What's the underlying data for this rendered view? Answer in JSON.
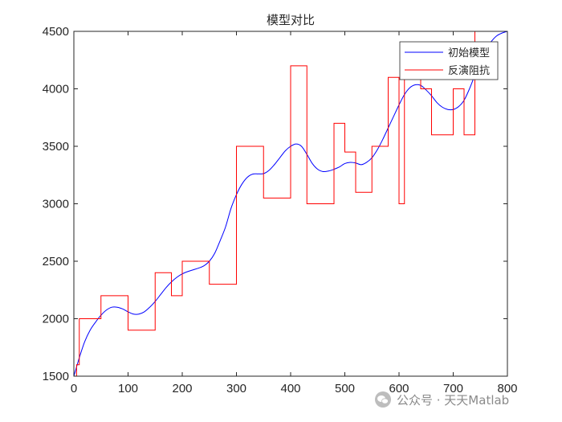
{
  "chart_data": {
    "type": "line",
    "title": "模型对比",
    "xlabel": "",
    "ylabel": "",
    "xlim": [
      0,
      800
    ],
    "ylim": [
      1500,
      4500
    ],
    "xticks": [
      0,
      100,
      200,
      300,
      400,
      500,
      600,
      700,
      800
    ],
    "yticks": [
      1500,
      2000,
      2500,
      3000,
      3500,
      4000,
      4500
    ],
    "grid": false,
    "legend_position": "top-right",
    "series": [
      {
        "name": "初始模型",
        "color": "#0000ff",
        "style": "smooth",
        "x": [
          0,
          10,
          20,
          30,
          40,
          50,
          60,
          70,
          80,
          90,
          100,
          110,
          120,
          130,
          140,
          150,
          160,
          170,
          180,
          190,
          200,
          210,
          220,
          230,
          240,
          250,
          260,
          270,
          280,
          290,
          300,
          310,
          320,
          330,
          340,
          350,
          360,
          370,
          380,
          390,
          400,
          410,
          420,
          430,
          440,
          450,
          460,
          470,
          480,
          490,
          500,
          510,
          520,
          530,
          540,
          550,
          560,
          570,
          580,
          590,
          600,
          610,
          620,
          630,
          640,
          650,
          660,
          670,
          680,
          690,
          700,
          710,
          720,
          730,
          740,
          750,
          760,
          770,
          780,
          790,
          800
        ],
        "y": [
          1500,
          1660,
          1800,
          1900,
          1970,
          2030,
          2075,
          2100,
          2100,
          2085,
          2060,
          2040,
          2040,
          2060,
          2100,
          2150,
          2210,
          2270,
          2320,
          2360,
          2390,
          2410,
          2425,
          2440,
          2460,
          2500,
          2570,
          2680,
          2800,
          2960,
          3080,
          3170,
          3230,
          3258,
          3260,
          3262,
          3290,
          3340,
          3400,
          3460,
          3500,
          3520,
          3500,
          3430,
          3350,
          3300,
          3280,
          3285,
          3300,
          3320,
          3350,
          3360,
          3355,
          3340,
          3360,
          3400,
          3470,
          3560,
          3660,
          3760,
          3860,
          3950,
          4010,
          4035,
          4030,
          3990,
          3940,
          3880,
          3840,
          3820,
          3820,
          3845,
          3900,
          4000,
          4120,
          4240,
          4340,
          4410,
          4460,
          4485,
          4500
        ]
      },
      {
        "name": "反演阻抗",
        "color": "#ff0000",
        "style": "step",
        "x": [
          0,
          5,
          5,
          10,
          10,
          50,
          50,
          100,
          100,
          150,
          150,
          180,
          180,
          200,
          200,
          250,
          250,
          300,
          300,
          350,
          350,
          400,
          400,
          430,
          430,
          480,
          480,
          500,
          500,
          520,
          520,
          550,
          550,
          580,
          580,
          600,
          600,
          610,
          610,
          640,
          640,
          660,
          660,
          700,
          700,
          720,
          720,
          740,
          740,
          800
        ],
        "y": [
          1500,
          1500,
          1600,
          1600,
          2000,
          2000,
          2200,
          2200,
          1900,
          1900,
          2400,
          2400,
          2200,
          2200,
          2500,
          2500,
          2300,
          2300,
          3500,
          3500,
          3050,
          3050,
          4200,
          4200,
          3000,
          3000,
          3700,
          3700,
          3450,
          3450,
          3100,
          3100,
          3500,
          3500,
          4100,
          4100,
          3000,
          3000,
          4100,
          4100,
          4000,
          4000,
          3600,
          3600,
          4000,
          4000,
          3600,
          3600,
          4500,
          4500
        ]
      }
    ]
  },
  "watermark": {
    "text": "公众号 · 天天Matlab",
    "icon": "wechat-icon"
  }
}
